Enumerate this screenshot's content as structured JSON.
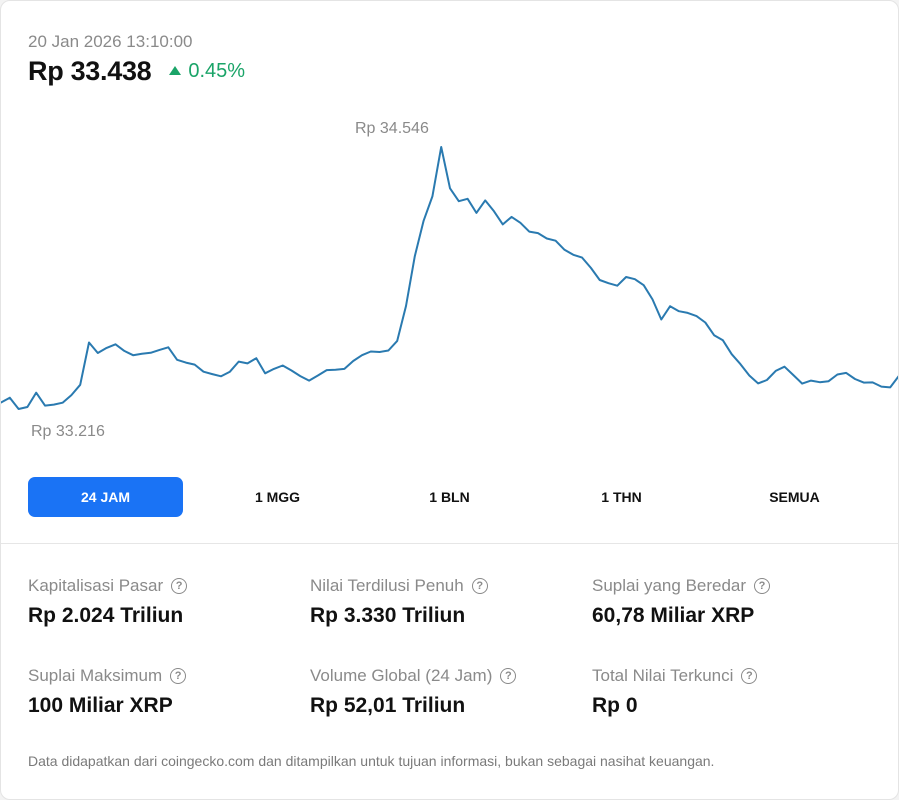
{
  "header": {
    "timestamp": "20 Jan 2026 13:10:00",
    "price": "Rp 33.438",
    "change": "0.45%",
    "change_color": "#1aa468"
  },
  "chart_data": {
    "type": "line",
    "high_label": "Rp 34.546",
    "low_label": "Rp 33.216",
    "ylim": [
      33216,
      34546
    ],
    "line_color": "#2a7ab0",
    "values": [
      33259,
      33283,
      33226,
      33236,
      33308,
      33243,
      33248,
      33258,
      33296,
      33348,
      33561,
      33508,
      33534,
      33552,
      33519,
      33497,
      33504,
      33509,
      33524,
      33537,
      33474,
      33460,
      33450,
      33414,
      33402,
      33391,
      33414,
      33465,
      33456,
      33482,
      33406,
      33428,
      33445,
      33420,
      33392,
      33369,
      33395,
      33422,
      33424,
      33428,
      33468,
      33497,
      33516,
      33513,
      33521,
      33569,
      33745,
      33996,
      34174,
      34297,
      34546,
      34338,
      34273,
      34285,
      34214,
      34277,
      34222,
      34156,
      34194,
      34164,
      34120,
      34112,
      34085,
      34074,
      34028,
      34003,
      33989,
      33937,
      33876,
      33860,
      33847,
      33891,
      33880,
      33850,
      33778,
      33677,
      33744,
      33719,
      33710,
      33694,
      33662,
      33598,
      33572,
      33502,
      33452,
      33395,
      33355,
      33372,
      33418,
      33439,
      33397,
      33354,
      33369,
      33361,
      33366,
      33400,
      33408,
      33377,
      33359,
      33360,
      33339,
      33335,
      33394
    ]
  },
  "tabs": [
    {
      "label": "24 JAM",
      "active": true
    },
    {
      "label": "1 MGG",
      "active": false
    },
    {
      "label": "1 BLN",
      "active": false
    },
    {
      "label": "1 THN",
      "active": false
    },
    {
      "label": "SEMUA",
      "active": false
    }
  ],
  "stats": [
    {
      "label": "Kapitalisasi Pasar",
      "value": "Rp 2.024 Triliun"
    },
    {
      "label": "Nilai Terdilusi Penuh",
      "value": "Rp 3.330 Triliun"
    },
    {
      "label": "Suplai yang Beredar",
      "value": "60,78 Miliar XRP"
    },
    {
      "label": "Suplai Maksimum",
      "value": "100 Miliar XRP"
    },
    {
      "label": "Volume Global (24 Jam)",
      "value": "Rp 52,01 Triliun"
    },
    {
      "label": "Total Nilai Terkunci",
      "value": "Rp 0"
    }
  ],
  "help_icon_glyph": "?",
  "footnote": "Data didapatkan dari coingecko.com dan ditampilkan untuk tujuan informasi, bukan sebagai nasihat keuangan."
}
